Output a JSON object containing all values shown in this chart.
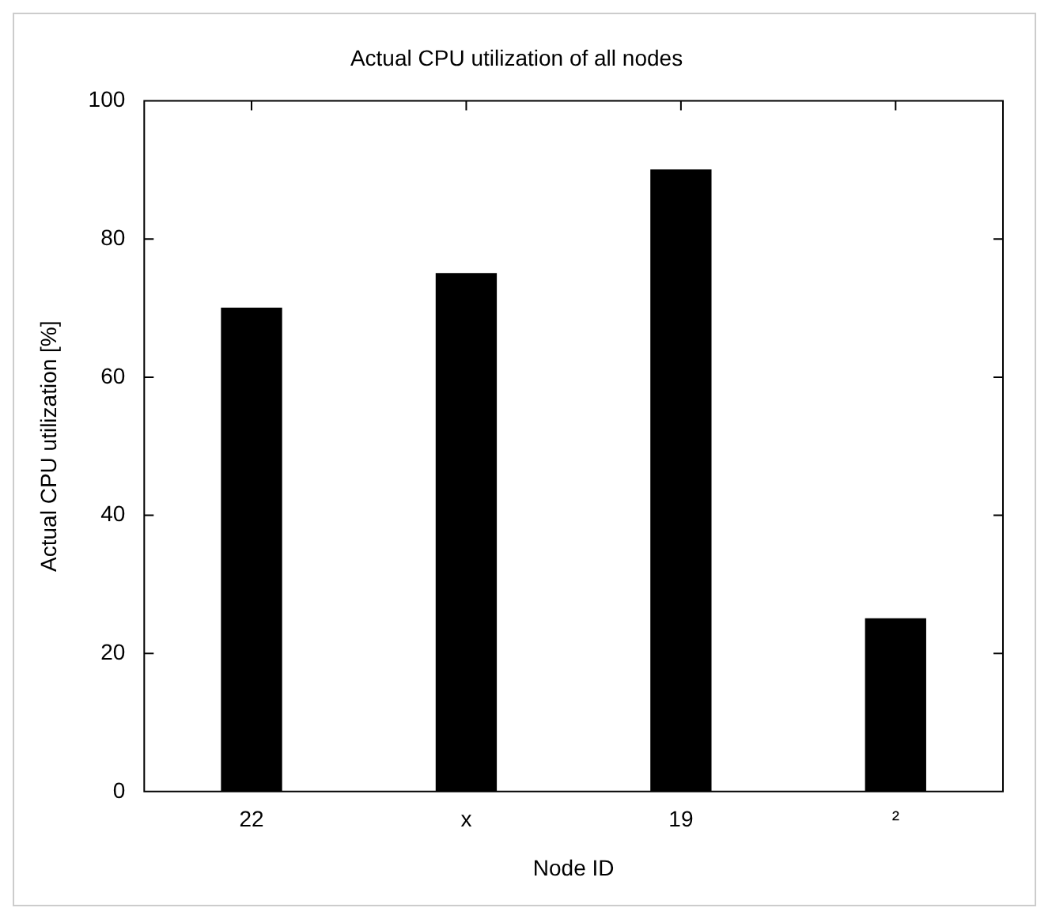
{
  "chart_data": {
    "type": "bar",
    "title": "Actual CPU utilization of all nodes",
    "xlabel": "Node ID",
    "ylabel": "Actual CPU utilization [%]",
    "categories": [
      "22",
      "x",
      "19",
      "²"
    ],
    "values": [
      70,
      75,
      90,
      25
    ],
    "color": "#000000",
    "ylim": [
      0,
      100
    ],
    "yticks": [
      0,
      20,
      40,
      60,
      80,
      100
    ],
    "grid": false,
    "legend": false
  }
}
